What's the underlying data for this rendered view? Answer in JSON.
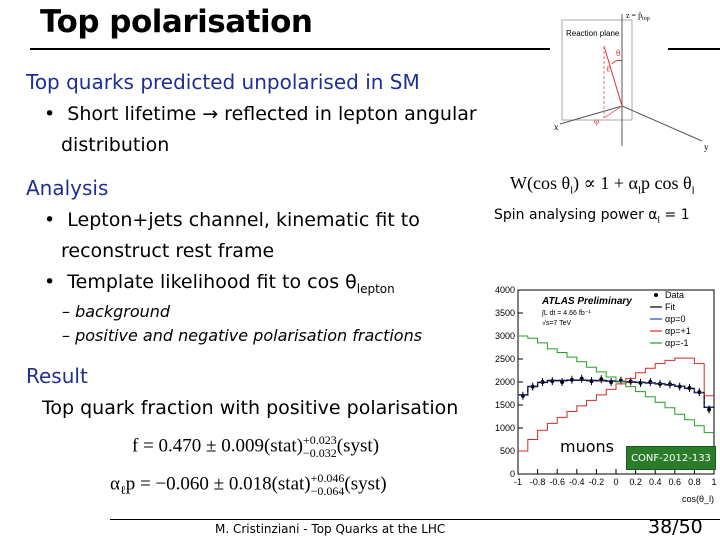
{
  "title": "Top polarisation",
  "section1": {
    "heading": "Top quarks predicted unpolarised in SM",
    "bullet": "Short lifetime → reflected in lepton angular",
    "bullet_cont": "distribution"
  },
  "analysis": {
    "heading": "Analysis",
    "bullet1": "Lepton+jets channel, kinematic fit to",
    "bullet1_cont": "reconstruct rest frame",
    "bullet2": "Template likelihood  fit to cos θ",
    "bullet2_sub": "lepton",
    "sub1": "– background",
    "sub2": "– positive and negative polarisation fractions"
  },
  "result": {
    "heading": "Result",
    "text": "Top quark fraction with positive polarisation",
    "formula1_lhs": "f = 0.470 ± 0.009(stat)",
    "formula1_sup": "+0.023",
    "formula1_sub": "−0.032",
    "formula1_tail": "(syst)",
    "formula2_lhs": "α",
    "formula2_lhs_sub": "ℓ",
    "formula2_mid": "p = −0.060 ± 0.018(stat)",
    "formula2_sup": "+0.046",
    "formula2_sub": "−0.064",
    "formula2_tail": "(syst)"
  },
  "right": {
    "diagram": {
      "reaction_plane": "Reaction plane",
      "z_label": "z = p̂",
      "z_label_sub": "top",
      "theta": "θ",
      "r_label": "ℓ",
      "phi": "φ",
      "x_label": "x",
      "y_label": "y"
    },
    "dist_formula": "W(cos θ",
    "dist_formula_mid": ") ∝ 1 + α",
    "dist_formula_end": "p cos θ",
    "spin_text": "Spin analysing power α",
    "spin_sub": "l",
    "spin_val": " = 1",
    "muons": "muons",
    "conf": "CONF-2012-133"
  },
  "chart_data": {
    "type": "line",
    "title": "ATLAS Preliminary",
    "annotations": [
      "∫L dt = 4.66 fb⁻¹",
      "√s=7 TeV",
      "muons"
    ],
    "xlabel": "cos(θ_l)",
    "ylabel": "",
    "xlim": [
      -1,
      1
    ],
    "ylim": [
      0,
      4000
    ],
    "x_ticks": [
      "-1",
      "-0.8",
      "-0.6",
      "-0.4",
      "-0.2",
      "0",
      "0.2",
      "0.4",
      "0.6",
      "0.8",
      "1"
    ],
    "y_ticks": [
      "0",
      "500",
      "1000",
      "1500",
      "2000",
      "2500",
      "3000",
      "3500",
      "4000"
    ],
    "legend": [
      "Data",
      "Fit",
      "αp=0",
      "αp=+1",
      "αp=-1"
    ],
    "x": [
      -0.95,
      -0.85,
      -0.75,
      -0.65,
      -0.55,
      -0.45,
      -0.35,
      -0.25,
      -0.15,
      -0.05,
      0.05,
      0.15,
      0.25,
      0.35,
      0.45,
      0.55,
      0.65,
      0.75,
      0.85,
      0.95
    ],
    "series": [
      {
        "name": "Data",
        "color": "#000000",
        "values": [
          1700,
          1900,
          2000,
          2020,
          2000,
          2050,
          2070,
          2020,
          2060,
          2000,
          2030,
          2010,
          1980,
          2000,
          1960,
          1950,
          1900,
          1870,
          1780,
          1400
        ]
      },
      {
        "name": "Fit",
        "color": "#000000",
        "values": [
          1720,
          1900,
          1990,
          2030,
          2030,
          2040,
          2040,
          2030,
          2030,
          2020,
          2010,
          2000,
          1990,
          1980,
          1960,
          1940,
          1910,
          1860,
          1770,
          1450
        ]
      },
      {
        "name": "αp=0",
        "color": "#2a3fbf",
        "values": [
          1720,
          1910,
          2000,
          2040,
          2040,
          2050,
          2050,
          2040,
          2040,
          2030,
          2020,
          2010,
          2000,
          1990,
          1970,
          1950,
          1910,
          1870,
          1770,
          1450
        ]
      },
      {
        "name": "αp=+1",
        "color": "#d62a2a",
        "values": [
          500,
          750,
          950,
          1100,
          1230,
          1360,
          1480,
          1600,
          1720,
          1840,
          1960,
          2080,
          2200,
          2300,
          2400,
          2470,
          2520,
          2520,
          2400,
          1700
        ]
      },
      {
        "name": "αp=-1",
        "color": "#22a022",
        "values": [
          3000,
          2950,
          2850,
          2720,
          2640,
          2540,
          2440,
          2320,
          2220,
          2110,
          2000,
          1900,
          1790,
          1680,
          1560,
          1440,
          1300,
          1180,
          1050,
          900
        ]
      }
    ]
  },
  "footer": {
    "text": "M. Cristinziani - Top Quarks at the LHC",
    "page": "38/50"
  }
}
